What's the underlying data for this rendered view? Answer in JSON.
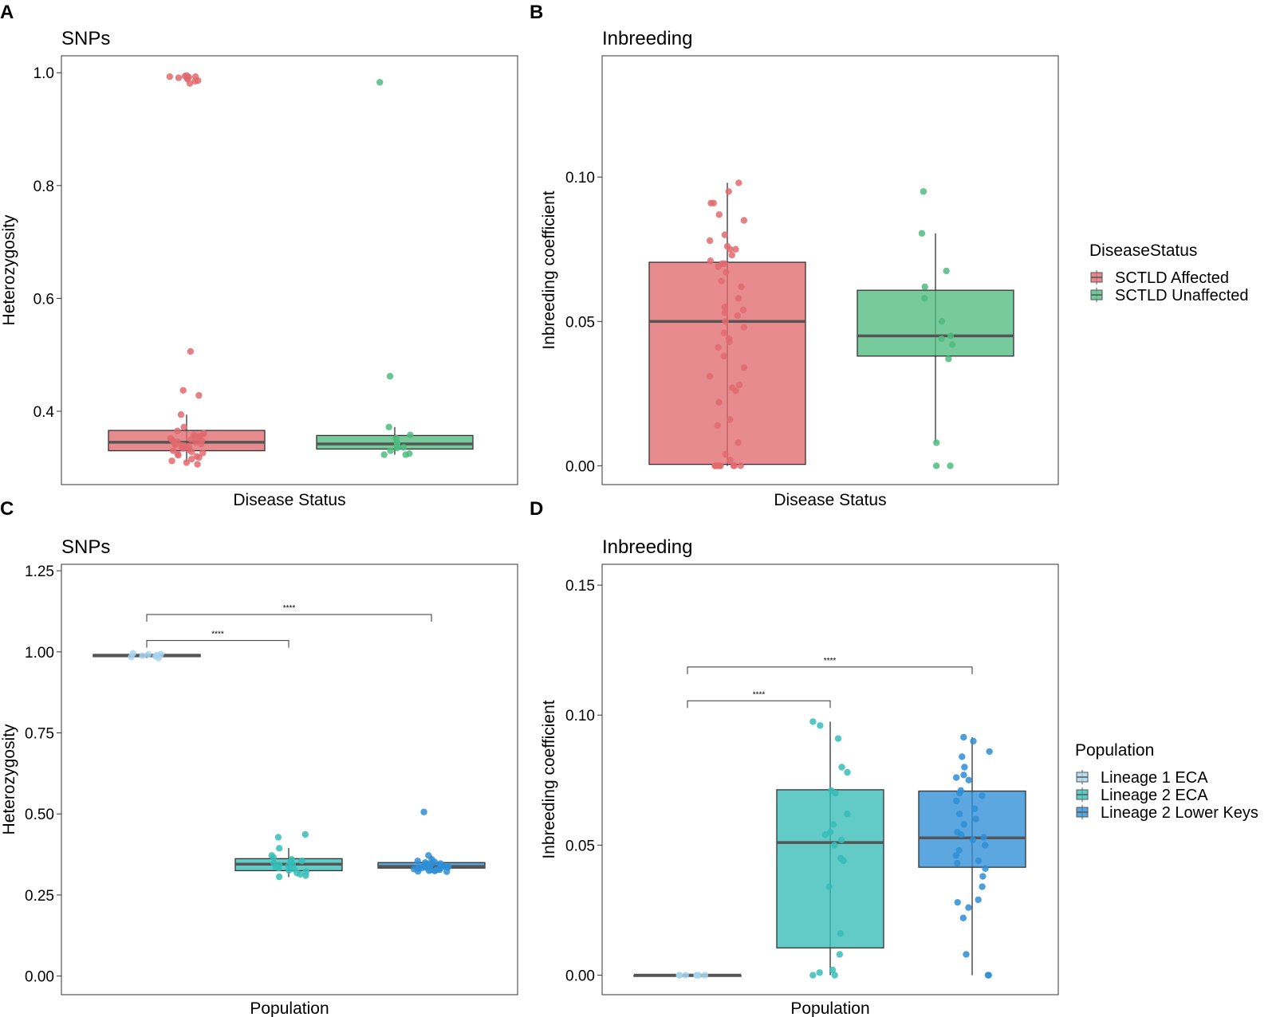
{
  "colors": {
    "affected": "#E06A6E",
    "unaffected": "#4FBB7F",
    "lineage1": "#A6D5EF",
    "lineage2eca": "#36BDB8",
    "lineage2lk": "#2E8ED6",
    "axis": "#333333",
    "median": "#555555"
  },
  "legends": {
    "disease": {
      "title": "DiseaseStatus",
      "items": [
        {
          "label": "SCTLD Affected",
          "color": "#E06A6E"
        },
        {
          "label": "SCTLD Unaffected",
          "color": "#4FBB7F"
        }
      ]
    },
    "population": {
      "title": "Population",
      "items": [
        {
          "label": "Lineage 1 ECA",
          "color": "#A6D5EF"
        },
        {
          "label": "Lineage 2 ECA",
          "color": "#36BDB8"
        },
        {
          "label": "Lineage 2 Lower Keys",
          "color": "#2E8ED6"
        }
      ]
    }
  },
  "chart_data": [
    {
      "panel": "A",
      "type": "box",
      "title": "SNPs",
      "xlabel": "Disease Status",
      "ylabel": "Heterozygosity",
      "ylim": [
        0.27,
        1.03
      ],
      "yticks": [
        0.4,
        0.6,
        0.8,
        1.0
      ],
      "ytick_labels": [
        "0.4",
        "0.6",
        "0.8",
        "1.0"
      ],
      "groups": [
        {
          "name": "SCTLD Affected",
          "colorKey": "affected",
          "q1": 0.33,
          "median": 0.345,
          "q3": 0.366,
          "whisker_low": 0.31,
          "whisker_high": 0.394,
          "points": [
            0.985,
            0.992,
            0.994,
            0.991,
            0.986,
            0.993,
            0.995,
            0.989,
            0.99,
            0.993,
            0.981,
            0.506,
            0.437,
            0.428,
            0.394,
            0.372,
            0.365,
            0.36,
            0.358,
            0.356,
            0.354,
            0.352,
            0.35,
            0.348,
            0.346,
            0.345,
            0.343,
            0.342,
            0.341,
            0.34,
            0.338,
            0.336,
            0.334,
            0.332,
            0.33,
            0.328,
            0.326,
            0.324,
            0.322,
            0.32,
            0.318,
            0.315,
            0.312,
            0.309,
            0.306,
            0.355,
            0.349,
            0.339,
            0.361
          ]
        },
        {
          "name": "SCTLD Unaffected",
          "colorKey": "unaffected",
          "q1": 0.333,
          "median": 0.342,
          "q3": 0.357,
          "whisker_low": 0.323,
          "whisker_high": 0.372,
          "points": [
            0.983,
            0.462,
            0.372,
            0.358,
            0.352,
            0.344,
            0.34,
            0.338,
            0.335,
            0.33,
            0.325,
            0.323,
            0.323,
            0.336
          ]
        }
      ]
    },
    {
      "panel": "B",
      "type": "box",
      "title": "Inbreeding",
      "xlabel": "Disease Status",
      "ylabel": "Inbreeding coefficient",
      "ylim": [
        -0.0065,
        0.142
      ],
      "yticks": [
        0.0,
        0.05,
        0.1
      ],
      "ytick_labels": [
        "0.00",
        "0.05",
        "0.10"
      ],
      "groups": [
        {
          "name": "SCTLD Affected",
          "colorKey": "affected",
          "q1": 0.0005,
          "median": 0.05,
          "q3": 0.0705,
          "whisker_low": 0.0,
          "whisker_high": 0.098,
          "points": [
            0.098,
            0.095,
            0.091,
            0.091,
            0.087,
            0.085,
            0.08,
            0.078,
            0.076,
            0.075,
            0.075,
            0.073,
            0.071,
            0.07,
            0.07,
            0.069,
            0.067,
            0.064,
            0.062,
            0.058,
            0.055,
            0.054,
            0.053,
            0.052,
            0.05,
            0.048,
            0.046,
            0.044,
            0.043,
            0.041,
            0.038,
            0.034,
            0.031,
            0.028,
            0.027,
            0.026,
            0.022,
            0.016,
            0.014,
            0.008,
            0.004,
            0.002,
            0.0,
            0.0,
            0.0,
            0.0,
            0.0,
            0.0,
            0.0,
            0.0
          ]
        },
        {
          "name": "SCTLD Unaffected",
          "colorKey": "unaffected",
          "q1": 0.038,
          "median": 0.045,
          "q3": 0.0608,
          "whisker_low": 0.008,
          "whisker_high": 0.0805,
          "points": [
            0.095,
            0.0805,
            0.0675,
            0.062,
            0.058,
            0.05,
            0.045,
            0.044,
            0.042,
            0.037,
            0.008,
            0.0,
            0.0
          ]
        }
      ]
    },
    {
      "panel": "C",
      "type": "box",
      "title": "SNPs",
      "xlabel": "Population",
      "ylabel": "Heterozygosity",
      "ylim": [
        -0.0575,
        1.27
      ],
      "yticks": [
        0.0,
        0.25,
        0.5,
        0.75,
        1.0,
        1.25
      ],
      "ytick_labels": [
        "0.00",
        "0.25",
        "0.50",
        "0.75",
        "1.00",
        "1.25"
      ],
      "groups": [
        {
          "name": "Lineage 1 ECA",
          "colorKey": "lineage1",
          "q1": 0.985,
          "median": 0.988,
          "q3": 0.992,
          "whisker_low": 0.981,
          "whisker_high": 0.995,
          "points": [
            0.995,
            0.993,
            0.992,
            0.99,
            0.988,
            0.986,
            0.984,
            0.981
          ]
        },
        {
          "name": "Lineage 2 ECA",
          "colorKey": "lineage2eca",
          "q1": 0.325,
          "median": 0.345,
          "q3": 0.362,
          "whisker_low": 0.305,
          "whisker_high": 0.395,
          "points": [
            0.437,
            0.428,
            0.394,
            0.372,
            0.365,
            0.36,
            0.355,
            0.352,
            0.348,
            0.345,
            0.342,
            0.34,
            0.336,
            0.333,
            0.33,
            0.326,
            0.322,
            0.318,
            0.314,
            0.31,
            0.306
          ]
        },
        {
          "name": "Lineage 2 Lower Keys",
          "colorKey": "lineage2lk",
          "q1": 0.333,
          "median": 0.338,
          "q3": 0.35,
          "whisker_low": 0.322,
          "whisker_high": 0.372,
          "points": [
            0.506,
            0.372,
            0.36,
            0.355,
            0.352,
            0.35,
            0.348,
            0.346,
            0.344,
            0.342,
            0.34,
            0.339,
            0.338,
            0.337,
            0.336,
            0.335,
            0.334,
            0.333,
            0.332,
            0.331,
            0.33,
            0.329,
            0.328,
            0.327,
            0.326,
            0.325,
            0.324,
            0.323,
            0.322,
            0.341,
            0.343,
            0.347,
            0.337,
            0.335
          ]
        }
      ],
      "comparisons": [
        {
          "from": 0,
          "to": 1,
          "y": 1.035,
          "label": "****"
        },
        {
          "from": 0,
          "to": 2,
          "y": 1.115,
          "label": "****"
        }
      ]
    },
    {
      "panel": "D",
      "type": "box",
      "title": "Inbreeding",
      "xlabel": "Population",
      "ylabel": "Inbreeding coefficient",
      "ylim": [
        -0.0075,
        0.158
      ],
      "yticks": [
        0.0,
        0.05,
        0.1,
        0.15
      ],
      "ytick_labels": [
        "0.00",
        "0.05",
        "0.10",
        "0.15"
      ],
      "groups": [
        {
          "name": "Lineage 1 ECA",
          "colorKey": "lineage1",
          "q1": 0.0,
          "median": 0.0,
          "q3": 0.0,
          "whisker_low": 0.0,
          "whisker_high": 0.0,
          "points": [
            0.0,
            0.0,
            0.0,
            0.0,
            0.0,
            0.0,
            0.0
          ]
        },
        {
          "name": "Lineage 2 ECA",
          "colorKey": "lineage2eca",
          "q1": 0.0105,
          "median": 0.051,
          "q3": 0.0713,
          "whisker_low": 0.0,
          "whisker_high": 0.0975,
          "points": [
            0.0975,
            0.096,
            0.091,
            0.08,
            0.078,
            0.071,
            0.07,
            0.062,
            0.058,
            0.055,
            0.054,
            0.052,
            0.05,
            0.045,
            0.044,
            0.034,
            0.016,
            0.008,
            0.002,
            0.001,
            0.0,
            0.0
          ]
        },
        {
          "name": "Lineage 2 Lower Keys",
          "colorKey": "lineage2lk",
          "q1": 0.0415,
          "median": 0.0528,
          "q3": 0.0708,
          "whisker_low": 0.0,
          "whisker_high": 0.0915,
          "points": [
            0.0915,
            0.09,
            0.086,
            0.084,
            0.08,
            0.077,
            0.076,
            0.075,
            0.071,
            0.07,
            0.069,
            0.067,
            0.064,
            0.062,
            0.06,
            0.058,
            0.055,
            0.054,
            0.053,
            0.052,
            0.05,
            0.048,
            0.046,
            0.044,
            0.043,
            0.041,
            0.038,
            0.034,
            0.029,
            0.028,
            0.026,
            0.022,
            0.008,
            0.0,
            0.0
          ]
        }
      ],
      "comparisons": [
        {
          "from": 0,
          "to": 1,
          "y": 0.1055,
          "label": "****"
        },
        {
          "from": 0,
          "to": 2,
          "y": 0.1185,
          "label": "****"
        }
      ]
    }
  ]
}
